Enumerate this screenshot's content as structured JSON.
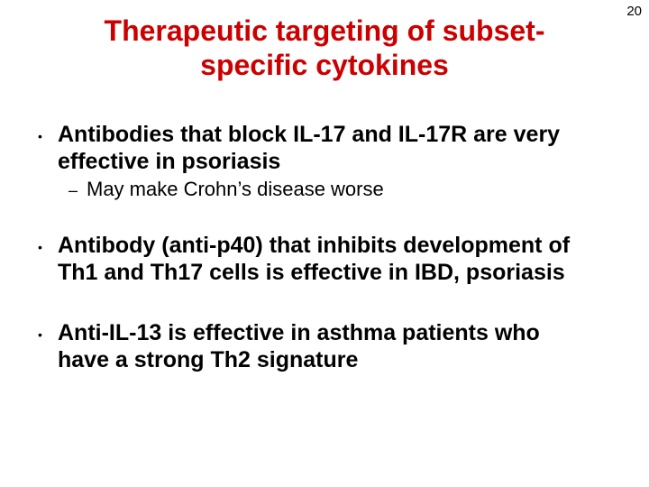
{
  "page_number": "20",
  "title": "Therapeutic targeting of subset-specific cytokines",
  "colors": {
    "title_color": "#cc0000",
    "text_color": "#000000",
    "background": "#ffffff"
  },
  "typography": {
    "font_family": "Comic Sans MS",
    "title_fontsize_pt": 32,
    "bullet_fontsize_pt": 25,
    "sub_fontsize_pt": 22,
    "page_num_fontsize_pt": 15,
    "title_weight": "bold",
    "bullet_weight": "bold",
    "sub_weight": "normal"
  },
  "bullets": [
    {
      "text": "Antibodies that block IL-17 and IL-17R are very effective in psoriasis",
      "sub": [
        {
          "text": "May make Crohn’s disease worse"
        }
      ]
    },
    {
      "text": "Antibody (anti-p40) that inhibits development of Th1 and Th17 cells is effective in IBD, psoriasis",
      "sub": []
    },
    {
      "text": "Anti-IL-13 is effective in asthma patients who have a strong Th2 signature",
      "sub": []
    }
  ]
}
